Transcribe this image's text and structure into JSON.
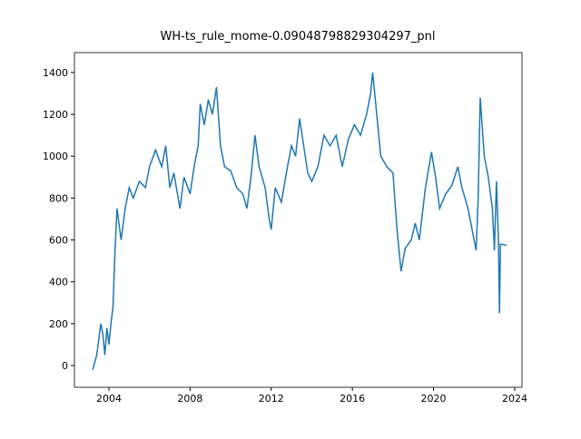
{
  "chart_data": {
    "type": "line",
    "title": "WH-ts_rule_mome-0.09048798829304297_pnl",
    "x": [
      2003.2,
      2003.4,
      2003.6,
      2003.7,
      2003.8,
      2003.9,
      2004.0,
      2004.1,
      2004.2,
      2004.3,
      2004.4,
      2004.6,
      2004.8,
      2005.0,
      2005.2,
      2005.5,
      2005.8,
      2006.0,
      2006.3,
      2006.6,
      2006.8,
      2007.0,
      2007.2,
      2007.5,
      2007.7,
      2008.0,
      2008.2,
      2008.4,
      2008.5,
      2008.7,
      2008.9,
      2009.1,
      2009.3,
      2009.5,
      2009.7,
      2010.0,
      2010.3,
      2010.6,
      2010.8,
      2011.0,
      2011.2,
      2011.4,
      2011.7,
      2011.9,
      2012.0,
      2012.2,
      2012.5,
      2012.8,
      2013.0,
      2013.2,
      2013.4,
      2013.6,
      2013.8,
      2014.0,
      2014.3,
      2014.6,
      2014.9,
      2015.2,
      2015.5,
      2015.8,
      2016.1,
      2016.4,
      2016.7,
      2016.9,
      2017.0,
      2017.2,
      2017.4,
      2017.7,
      2018.0,
      2018.2,
      2018.4,
      2018.6,
      2018.9,
      2019.1,
      2019.3,
      2019.6,
      2019.9,
      2020.1,
      2020.3,
      2020.6,
      2020.9,
      2021.2,
      2021.4,
      2021.7,
      2021.9,
      2022.1,
      2022.2,
      2022.3,
      2022.5,
      2022.7,
      2022.9,
      2023.0,
      2023.1,
      2023.2,
      2023.25,
      2023.3,
      2023.6
    ],
    "series": [
      {
        "color": "#1f77b4",
        "values": [
          -20,
          50,
          200,
          150,
          50,
          180,
          100,
          200,
          280,
          550,
          750,
          600,
          750,
          850,
          800,
          880,
          850,
          950,
          1030,
          950,
          1050,
          850,
          920,
          750,
          900,
          820,
          950,
          1050,
          1250,
          1150,
          1270,
          1200,
          1330,
          1050,
          950,
          930,
          850,
          820,
          750,
          900,
          1100,
          950,
          850,
          700,
          650,
          850,
          780,
          950,
          1050,
          1000,
          1180,
          1050,
          920,
          880,
          950,
          1100,
          1050,
          1100,
          950,
          1080,
          1150,
          1100,
          1200,
          1300,
          1400,
          1200,
          1000,
          950,
          920,
          650,
          450,
          560,
          600,
          680,
          600,
          850,
          1020,
          900,
          750,
          820,
          860,
          950,
          850,
          750,
          650,
          550,
          800,
          1280,
          1000,
          900,
          750,
          550,
          880,
          600,
          250,
          580,
          575
        ]
      }
    ],
    "xlim": [
      2002.3,
      2024.36
    ],
    "ylim": [
      -104,
      1495
    ],
    "xticks": [
      2004,
      2008,
      2012,
      2016,
      2020,
      2024
    ],
    "yticks": [
      0,
      200,
      400,
      600,
      800,
      1000,
      1200,
      1400
    ]
  }
}
